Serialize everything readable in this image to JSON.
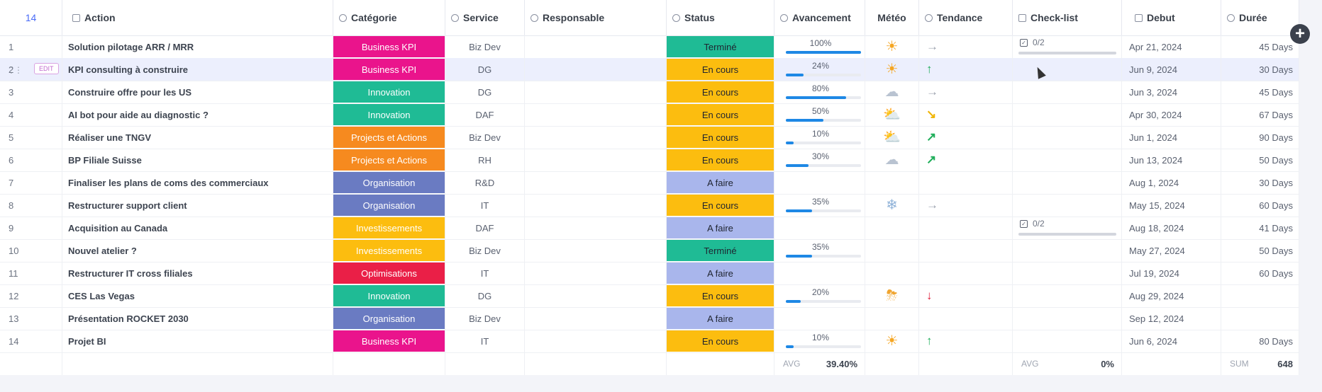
{
  "header": {
    "count": "14",
    "action": "Action",
    "categorie": "Catégorie",
    "service": "Service",
    "responsable": "Responsable",
    "status": "Status",
    "avancement": "Avancement",
    "meteo": "Météo",
    "tendance": "Tendance",
    "checklist": "Check-list",
    "debut": "Debut",
    "duree": "Durée"
  },
  "edit_label": "EDIT",
  "colors": {
    "Business KPI": "#ea148c",
    "Innovation": "#1fbb95",
    "Projects et Actions": "#f68a1f",
    "Organisation": "#6a7bc2",
    "Investissements": "#fcbd0f",
    "Optimisations": "#ea1f47",
    "Terminé": "#1fbb95",
    "En cours": "#fcbd0f",
    "A faire": "#a9b6ec"
  },
  "rows": [
    {
      "num": "1",
      "action": "Solution pilotage ARR / MRR",
      "categorie": "Business KPI",
      "service": "Biz Dev",
      "status": "Terminé",
      "avancement_text": "100%",
      "avancement": 1.0,
      "meteo": "sunny",
      "tendance": "flat",
      "checklist": "0/2",
      "debut": "Apr 21, 2024",
      "duree": "45 Days"
    },
    {
      "num": "2",
      "action": "KPI consulting à construire",
      "categorie": "Business KPI",
      "service": "DG",
      "status": "En cours",
      "avancement_text": "24%",
      "avancement": 0.24,
      "meteo": "sunny",
      "tendance": "up",
      "checklist": "",
      "debut": "Jun 9, 2024",
      "duree": "30 Days"
    },
    {
      "num": "3",
      "action": "Construire offre pour les US",
      "categorie": "Innovation",
      "service": "DG",
      "status": "En cours",
      "avancement_text": "80%",
      "avancement": 0.8,
      "meteo": "cloudy",
      "tendance": "flat",
      "checklist": "",
      "debut": "Jun 3, 2024",
      "duree": "45 Days"
    },
    {
      "num": "4",
      "action": "AI bot pour aide au diagnostic ?",
      "categorie": "Innovation",
      "service": "DAF",
      "status": "En cours",
      "avancement_text": "50%",
      "avancement": 0.5,
      "meteo": "partly-cloudy",
      "tendance": "down-right",
      "checklist": "",
      "debut": "Apr 30, 2024",
      "duree": "67 Days"
    },
    {
      "num": "5",
      "action": "Réaliser une TNGV",
      "categorie": "Projects et Actions",
      "service": "Biz Dev",
      "status": "En cours",
      "avancement_text": "10%",
      "avancement": 0.1,
      "meteo": "partly-cloudy",
      "tendance": "up-right",
      "checklist": "",
      "debut": "Jun 1, 2024",
      "duree": "90 Days"
    },
    {
      "num": "6",
      "action": "BP Filiale Suisse",
      "categorie": "Projects et Actions",
      "service": "RH",
      "status": "En cours",
      "avancement_text": "30%",
      "avancement": 0.3,
      "meteo": "cloudy",
      "tendance": "up-right",
      "checklist": "",
      "debut": "Jun 13, 2024",
      "duree": "50 Days"
    },
    {
      "num": "7",
      "action": "Finaliser les plans de coms des commerciaux",
      "categorie": "Organisation",
      "service": "R&D",
      "status": "A faire",
      "avancement_text": "",
      "avancement": null,
      "meteo": "",
      "tendance": "",
      "checklist": "",
      "debut": "Aug 1, 2024",
      "duree": "30 Days"
    },
    {
      "num": "8",
      "action": "Restructurer support client",
      "categorie": "Organisation",
      "service": "IT",
      "status": "En cours",
      "avancement_text": "35%",
      "avancement": 0.35,
      "meteo": "snow",
      "tendance": "flat",
      "checklist": "",
      "debut": "May 15, 2024",
      "duree": "60 Days"
    },
    {
      "num": "9",
      "action": "Acquisition au Canada",
      "categorie": "Investissements",
      "service": "DAF",
      "status": "A faire",
      "avancement_text": "",
      "avancement": null,
      "meteo": "",
      "tendance": "",
      "checklist": "0/2",
      "debut": "Aug 18, 2024",
      "duree": "41 Days"
    },
    {
      "num": "10",
      "action": "Nouvel atelier ?",
      "categorie": "Investissements",
      "service": "Biz Dev",
      "status": "Terminé",
      "avancement_text": "35%",
      "avancement": 0.35,
      "meteo": "",
      "tendance": "",
      "checklist": "",
      "debut": "May 27, 2024",
      "duree": "50 Days"
    },
    {
      "num": "11",
      "action": "Restructurer IT cross filiales",
      "categorie": "Optimisations",
      "service": "IT",
      "status": "A faire",
      "avancement_text": "",
      "avancement": null,
      "meteo": "",
      "tendance": "",
      "checklist": "",
      "debut": "Jul 19, 2024",
      "duree": "60 Days"
    },
    {
      "num": "12",
      "action": "CES Las Vegas",
      "categorie": "Innovation",
      "service": "DG",
      "status": "En cours",
      "avancement_text": "20%",
      "avancement": 0.2,
      "meteo": "storm",
      "tendance": "down",
      "checklist": "",
      "debut": "Aug 29, 2024",
      "duree": ""
    },
    {
      "num": "13",
      "action": "Présentation ROCKET 2030",
      "categorie": "Organisation",
      "service": "Biz Dev",
      "status": "A faire",
      "avancement_text": "",
      "avancement": null,
      "meteo": "",
      "tendance": "",
      "checklist": "",
      "debut": "Sep 12, 2024",
      "duree": ""
    },
    {
      "num": "14",
      "action": "Projet BI",
      "categorie": "Business KPI",
      "service": "IT",
      "status": "En cours",
      "avancement_text": "10%",
      "avancement": 0.1,
      "meteo": "sunny",
      "tendance": "up",
      "checklist": "",
      "debut": "Jun 6, 2024",
      "duree": "80 Days"
    }
  ],
  "footer": {
    "avg_label": "AVG",
    "avg_value": "39.40%",
    "check_avg_label": "AVG",
    "check_avg_value": "0%",
    "sum_label": "SUM",
    "sum_value": "648"
  }
}
